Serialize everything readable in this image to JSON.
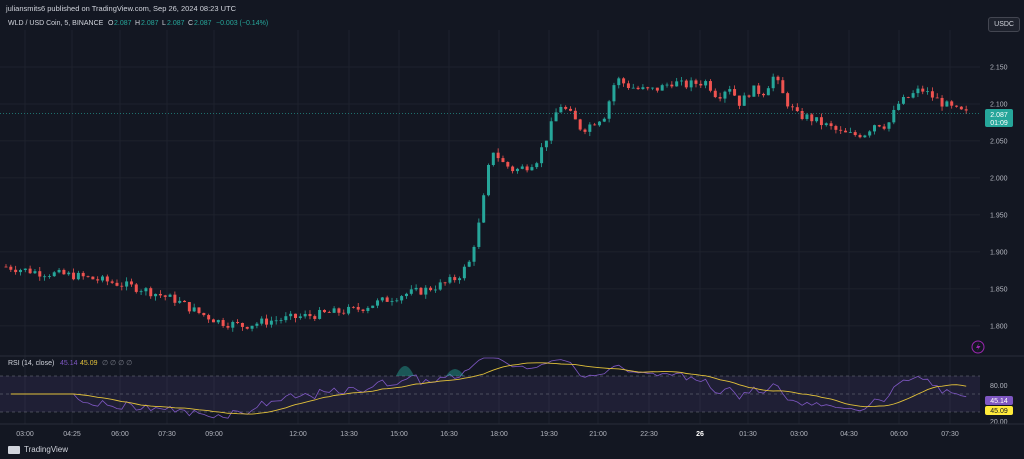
{
  "publish_line": "juliansmits6 published on TradingView.com, Sep 26, 2024 08:23 UTC",
  "currency_button": "USDC",
  "legend": {
    "symbol": "WLD / USD Coin, 5, BINANCE",
    "o_label": "O",
    "o_value": "2.087",
    "h_label": "H",
    "h_value": "2.087",
    "l_label": "L",
    "l_value": "2.087",
    "c_label": "C",
    "c_value": "2.087",
    "change": "−0.003 (−0.14%)"
  },
  "price_badge": {
    "value": "2.087",
    "countdown": "01:09"
  },
  "rsi_legend": {
    "label": "RSI (14, close)",
    "rsi_value": "45.14",
    "ma_value": "45.09",
    "placeholders": "∅ ∅ ∅ ∅"
  },
  "footer_brand": "TradingView",
  "colors": {
    "up": "#26a69a",
    "down": "#ef5350",
    "rsi": "#7e57c2",
    "rsi_ma": "#ffeb3b",
    "bg": "#131722"
  },
  "chart_data": {
    "type": "candlestick",
    "x_ticks": [
      "03:00",
      "04:25",
      "06:00",
      "07:30",
      "09:00",
      "12:00",
      "13:30",
      "15:00",
      "16:30",
      "18:00",
      "19:30",
      "21:00",
      "22:30",
      "26",
      "01:30",
      "03:00",
      "04:30",
      "06:00",
      "07:30"
    ],
    "y_ticks": [
      "2.150",
      "2.100",
      "2.050",
      "2.000",
      "1.950",
      "1.900",
      "1.850",
      "1.800"
    ],
    "y_range": [
      1.77,
      2.2
    ],
    "last_price": 2.087,
    "close_path": [
      [
        0,
        1.88
      ],
      [
        3,
        1.872
      ],
      [
        6,
        1.868
      ],
      [
        9,
        1.86
      ],
      [
        12,
        1.85
      ],
      [
        15,
        1.835
      ],
      [
        17,
        1.818
      ],
      [
        19,
        1.805
      ],
      [
        21,
        1.8
      ],
      [
        23,
        1.806
      ],
      [
        25,
        1.81
      ],
      [
        27,
        1.814
      ],
      [
        29,
        1.818
      ],
      [
        31,
        1.822
      ],
      [
        33,
        1.832
      ],
      [
        35,
        1.842
      ],
      [
        37,
        1.848
      ],
      [
        39,
        1.858
      ],
      [
        40,
        1.866
      ],
      [
        41,
        1.885
      ],
      [
        42,
        1.945
      ],
      [
        43,
        2.04
      ],
      [
        44,
        2.02
      ],
      [
        45,
        2.01
      ],
      [
        46,
        2.015
      ],
      [
        47,
        2.025
      ],
      [
        48,
        2.06
      ],
      [
        49,
        2.1
      ],
      [
        50,
        2.085
      ],
      [
        51,
        2.065
      ],
      [
        52,
        2.075
      ],
      [
        53,
        2.085
      ],
      [
        54,
        2.135
      ],
      [
        55,
        2.125
      ],
      [
        56,
        2.12
      ],
      [
        57,
        2.118
      ],
      [
        58,
        2.122
      ],
      [
        59,
        2.13
      ],
      [
        60,
        2.125
      ],
      [
        61,
        2.128
      ],
      [
        62,
        2.13
      ],
      [
        63,
        2.11
      ],
      [
        64,
        2.125
      ],
      [
        65,
        2.1
      ],
      [
        66,
        2.12
      ],
      [
        67,
        2.115
      ],
      [
        68,
        2.138
      ],
      [
        69,
        2.105
      ],
      [
        70,
        2.085
      ],
      [
        71,
        2.082
      ],
      [
        72,
        2.075
      ],
      [
        73,
        2.068
      ],
      [
        74,
        2.06
      ],
      [
        75,
        2.058
      ],
      [
        76,
        2.06
      ],
      [
        77,
        2.075
      ],
      [
        78,
        2.07
      ],
      [
        79,
        2.1
      ],
      [
        80,
        2.11
      ],
      [
        81,
        2.12
      ],
      [
        82,
        2.11
      ],
      [
        83,
        2.1
      ],
      [
        84,
        2.092
      ],
      [
        85,
        2.087
      ]
    ],
    "rsi": {
      "y_ticks": [
        "80.00",
        "60.00",
        "20.00"
      ],
      "badges": [
        "45.14",
        "45.09"
      ],
      "upper_band": 70,
      "mid_band": 50,
      "lower_band": 30
    }
  }
}
